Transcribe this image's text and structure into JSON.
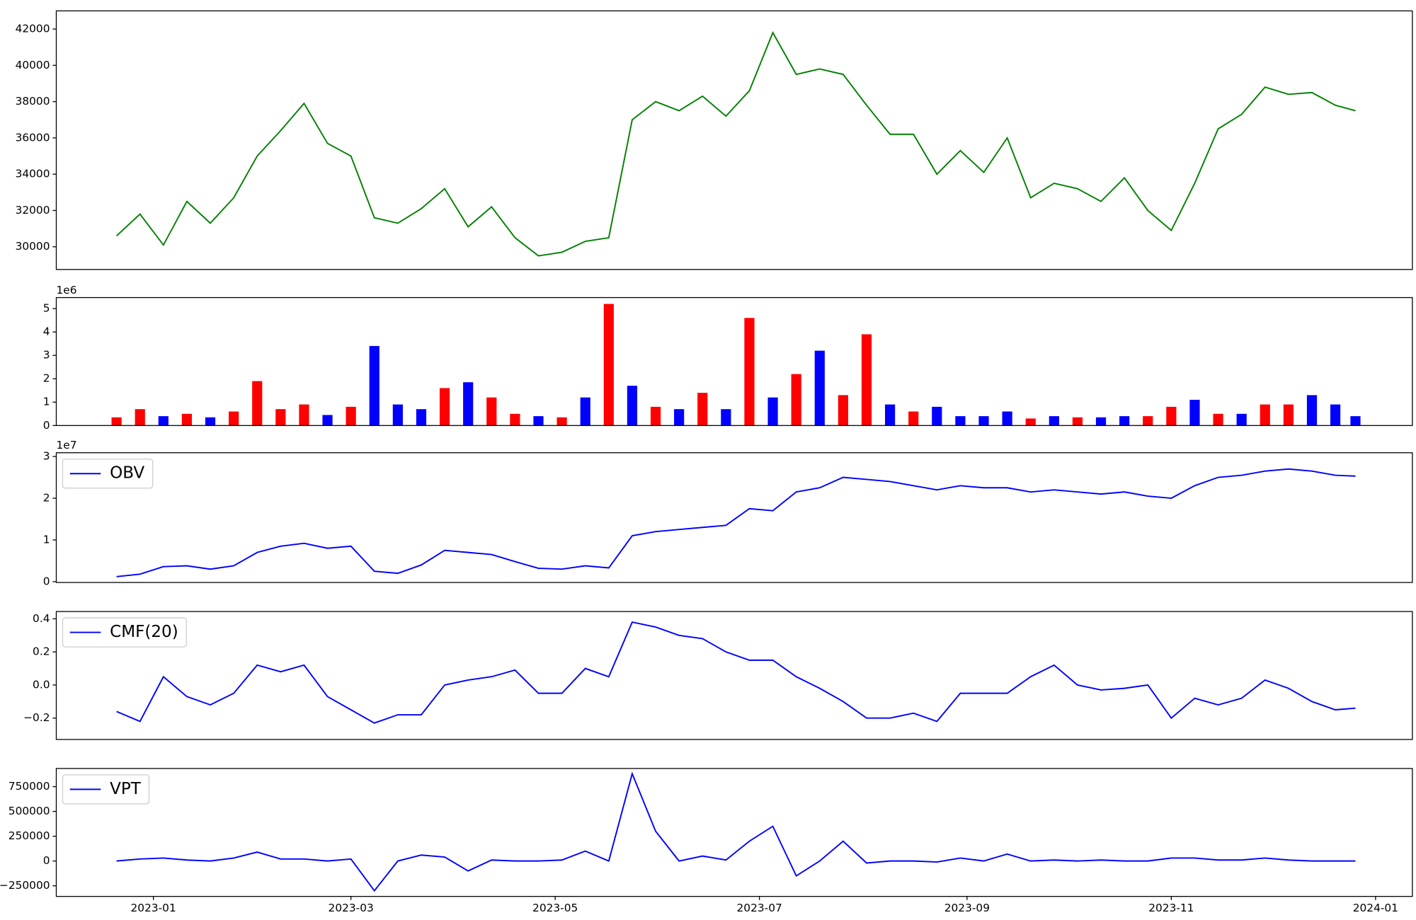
{
  "chart_data": [
    {
      "type": "line",
      "x": [
        19347,
        19354,
        19361,
        19368,
        19375,
        19382,
        19389,
        19396,
        19403,
        19410,
        19417,
        19424,
        19431,
        19438,
        19445,
        19452,
        19459,
        19466,
        19473,
        19480,
        19487,
        19494,
        19501,
        19508,
        19515,
        19522,
        19529,
        19536,
        19543,
        19550,
        19557,
        19564,
        19571,
        19578,
        19585,
        19592,
        19599,
        19606,
        19613,
        19620,
        19627,
        19634,
        19641,
        19648,
        19655,
        19662,
        19669,
        19676,
        19683,
        19690,
        19697,
        19704,
        19711,
        19717
      ],
      "series": [
        {
          "color": "green",
          "values": [
            30600,
            31800,
            30100,
            32500,
            31300,
            32700,
            35000,
            36400,
            37900,
            35700,
            35000,
            31600,
            31300,
            32100,
            33200,
            31100,
            32200,
            30500,
            29500,
            29700,
            30300,
            30500,
            37000,
            38000,
            37500,
            38300,
            37200,
            38600,
            41800,
            39500,
            39800,
            39500,
            37800,
            36200,
            36200,
            34000,
            35300,
            34100,
            36000,
            32700,
            33500,
            33200,
            32500,
            33800,
            32000,
            30900,
            33500,
            36500,
            37300,
            38800,
            38400,
            38500,
            37800,
            37500
          ]
        }
      ],
      "xlim": [
        19329,
        19734
      ],
      "ylim": [
        28750,
        43000
      ],
      "yticks": [
        30000,
        32000,
        34000,
        36000,
        38000,
        40000,
        42000
      ]
    },
    {
      "type": "bar",
      "x": [
        19347,
        19354,
        19361,
        19368,
        19375,
        19382,
        19389,
        19396,
        19403,
        19410,
        19417,
        19424,
        19431,
        19438,
        19445,
        19452,
        19459,
        19466,
        19473,
        19480,
        19487,
        19494,
        19501,
        19508,
        19515,
        19522,
        19529,
        19536,
        19543,
        19550,
        19557,
        19564,
        19571,
        19578,
        19585,
        19592,
        19599,
        19606,
        19613,
        19620,
        19627,
        19634,
        19641,
        19648,
        19655,
        19662,
        19669,
        19676,
        19683,
        19690,
        19697,
        19704,
        19711,
        19717
      ],
      "values": [
        350000,
        700000,
        400000,
        500000,
        350000,
        600000,
        1900000,
        700000,
        900000,
        450000,
        800000,
        3400000,
        900000,
        700000,
        1600000,
        1850000,
        1200000,
        500000,
        400000,
        350000,
        1200000,
        5200000,
        1700000,
        800000,
        700000,
        1400000,
        700000,
        4600000,
        1200000,
        2200000,
        3200000,
        1300000,
        3900000,
        900000,
        600000,
        800000,
        400000,
        400000,
        600000,
        300000,
        400000,
        350000,
        350000,
        400000,
        400000,
        800000,
        1100000,
        500000,
        500000,
        900000,
        900000,
        1300000,
        900000,
        400000
      ],
      "colors": [
        "red",
        "red",
        "blue",
        "red",
        "blue",
        "red",
        "red",
        "red",
        "red",
        "blue",
        "red",
        "blue",
        "blue",
        "blue",
        "red",
        "blue",
        "red",
        "red",
        "blue",
        "red",
        "blue",
        "red",
        "blue",
        "red",
        "blue",
        "red",
        "blue",
        "red",
        "blue",
        "red",
        "blue",
        "red",
        "red",
        "blue",
        "red",
        "blue",
        "blue",
        "blue",
        "blue",
        "red",
        "blue",
        "red",
        "blue",
        "blue",
        "red",
        "red",
        "blue",
        "red",
        "blue",
        "red",
        "red",
        "blue",
        "blue",
        "blue"
      ],
      "xlim": [
        19329,
        19734
      ],
      "ylim": [
        0,
        5470000
      ],
      "yticks": [
        0,
        {
          "value": 1000000,
          "label": "1"
        },
        {
          "value": 2000000,
          "label": "2"
        },
        {
          "value": 3000000,
          "label": "3"
        },
        {
          "value": 4000000,
          "label": "4"
        },
        {
          "value": 5000000,
          "label": "5"
        }
      ],
      "offset_label": "1e6"
    },
    {
      "type": "line",
      "x": [
        19347,
        19354,
        19361,
        19368,
        19375,
        19382,
        19389,
        19396,
        19403,
        19410,
        19417,
        19424,
        19431,
        19438,
        19445,
        19452,
        19459,
        19466,
        19473,
        19480,
        19487,
        19494,
        19501,
        19508,
        19515,
        19522,
        19529,
        19536,
        19543,
        19550,
        19557,
        19564,
        19571,
        19578,
        19585,
        19592,
        19599,
        19606,
        19613,
        19620,
        19627,
        19634,
        19641,
        19648,
        19655,
        19662,
        19669,
        19676,
        19683,
        19690,
        19697,
        19704,
        19711,
        19717
      ],
      "series": [
        {
          "name": "OBV",
          "color": "blue",
          "values": [
            1200000,
            1800000,
            3600000,
            3800000,
            3000000,
            3800000,
            7000000,
            8500000,
            9200000,
            8000000,
            8500000,
            2500000,
            2000000,
            4000000,
            7500000,
            7000000,
            6500000,
            4800000,
            3200000,
            3000000,
            3800000,
            3300000,
            11000000,
            12000000,
            12500000,
            13000000,
            13500000,
            17500000,
            17000000,
            21500000,
            22500000,
            25000000,
            24500000,
            24000000,
            23000000,
            22000000,
            23000000,
            22500000,
            22500000,
            21500000,
            22000000,
            21500000,
            21000000,
            21500000,
            20500000,
            20000000,
            23000000,
            25000000,
            25500000,
            26500000,
            27000000,
            26500000,
            25500000,
            25300000
          ]
        }
      ],
      "xlim": [
        19329,
        19734
      ],
      "ylim": [
        -200000,
        30900000
      ],
      "yticks": [
        0,
        {
          "value": 10000000,
          "label": "1"
        },
        {
          "value": 20000000,
          "label": "2"
        },
        {
          "value": 30000000,
          "label": "3"
        }
      ],
      "offset_label": "1e7",
      "legend": "upper left"
    },
    {
      "type": "line",
      "x": [
        19347,
        19354,
        19361,
        19368,
        19375,
        19382,
        19389,
        19396,
        19403,
        19410,
        19417,
        19424,
        19431,
        19438,
        19445,
        19452,
        19459,
        19466,
        19473,
        19480,
        19487,
        19494,
        19501,
        19508,
        19515,
        19522,
        19529,
        19536,
        19543,
        19550,
        19557,
        19564,
        19571,
        19578,
        19585,
        19592,
        19599,
        19606,
        19613,
        19620,
        19627,
        19634,
        19641,
        19648,
        19655,
        19662,
        19669,
        19676,
        19683,
        19690,
        19697,
        19704,
        19711,
        19717
      ],
      "series": [
        {
          "name": "CMF(20)",
          "color": "blue",
          "values": [
            -0.16,
            -0.22,
            0.05,
            -0.07,
            -0.12,
            -0.05,
            0.12,
            0.08,
            0.12,
            -0.07,
            -0.15,
            -0.23,
            -0.18,
            -0.18,
            0.0,
            0.03,
            0.05,
            0.09,
            -0.05,
            -0.05,
            0.1,
            0.05,
            0.38,
            0.35,
            0.3,
            0.28,
            0.2,
            0.15,
            0.15,
            0.05,
            -0.02,
            -0.1,
            -0.2,
            -0.2,
            -0.17,
            -0.22,
            -0.05,
            -0.05,
            -0.05,
            0.05,
            0.12,
            0.0,
            -0.03,
            -0.02,
            0.0,
            -0.2,
            -0.08,
            -0.12,
            -0.08,
            0.03,
            -0.02,
            -0.1,
            -0.15,
            -0.14
          ]
        }
      ],
      "xlim": [
        19329,
        19734
      ],
      "ylim": [
        -0.329,
        0.444
      ],
      "yticks": [
        {
          "value": -0.2,
          "label": "−0.2"
        },
        {
          "value": 0,
          "label": "0.0"
        },
        0.2,
        0.4
      ],
      "legend": "upper left"
    },
    {
      "type": "line",
      "x": [
        19347,
        19354,
        19361,
        19368,
        19375,
        19382,
        19389,
        19396,
        19403,
        19410,
        19417,
        19424,
        19431,
        19438,
        19445,
        19452,
        19459,
        19466,
        19473,
        19480,
        19487,
        19494,
        19501,
        19508,
        19515,
        19522,
        19529,
        19536,
        19543,
        19550,
        19557,
        19564,
        19571,
        19578,
        19585,
        19592,
        19599,
        19606,
        19613,
        19620,
        19627,
        19634,
        19641,
        19648,
        19655,
        19662,
        19669,
        19676,
        19683,
        19690,
        19697,
        19704,
        19711,
        19717
      ],
      "series": [
        {
          "name": "VPT",
          "color": "blue",
          "values": [
            0,
            20000,
            30000,
            10000,
            0,
            30000,
            90000,
            20000,
            20000,
            0,
            20000,
            -300000,
            0,
            60000,
            40000,
            -100000,
            10000,
            0,
            0,
            10000,
            100000,
            0,
            880000,
            300000,
            0,
            50000,
            10000,
            200000,
            350000,
            -150000,
            0,
            200000,
            -20000,
            0,
            0,
            -10000,
            30000,
            0,
            70000,
            0,
            10000,
            0,
            10000,
            0,
            0,
            30000,
            30000,
            10000,
            10000,
            30000,
            10000,
            0,
            0,
            0
          ]
        }
      ],
      "xlim": [
        19329,
        19734
      ],
      "ylim": [
        -357000,
        933000
      ],
      "yticks": [
        {
          "value": -250000,
          "label": "−250000"
        },
        0,
        250000,
        500000,
        750000
      ],
      "xticks": [
        {
          "value": 19358,
          "label": "2023-01"
        },
        {
          "value": 19417,
          "label": "2023-03"
        },
        {
          "value": 19478,
          "label": "2023-05"
        },
        {
          "value": 19539,
          "label": "2023-07"
        },
        {
          "value": 19601,
          "label": "2023-09"
        },
        {
          "value": 19662,
          "label": "2023-11"
        },
        {
          "value": 19723,
          "label": "2024-01"
        }
      ],
      "legend": "upper left"
    }
  ]
}
